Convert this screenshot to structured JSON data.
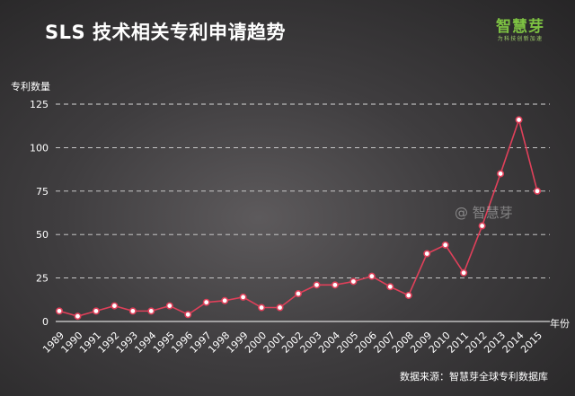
{
  "title": "SLS 技术相关专利申请趋势",
  "logo": {
    "name": "智慧芽",
    "tagline": "为科技创新加速"
  },
  "watermark": "@ 智慧芽",
  "source": "数据来源：智慧芽全球专利数据库",
  "colors": {
    "line": "#e0405a",
    "grid": "#d9d9d9",
    "point_fill": "#ffffff"
  },
  "chart_data": {
    "type": "line",
    "title": "SLS 技术相关专利申请趋势",
    "ylabel": "专利数量",
    "xlabel": "年份",
    "ylim": [
      0,
      125
    ],
    "yticks": [
      0,
      25,
      50,
      75,
      100,
      125
    ],
    "grid": "horizontal dashed",
    "x": [
      "1989",
      "1990",
      "1991",
      "1992",
      "1993",
      "1994",
      "1995",
      "1996",
      "1997",
      "1998",
      "1999",
      "2000",
      "2001",
      "2002",
      "2003",
      "2004",
      "2005",
      "2006",
      "2007",
      "2008",
      "2009",
      "2010",
      "2011",
      "2012",
      "2013",
      "2014",
      "2015"
    ],
    "series": [
      {
        "values": [
          6,
          3,
          6,
          9,
          6,
          6,
          9,
          4,
          11,
          12,
          14,
          8,
          8,
          16,
          21,
          21,
          23,
          26,
          20,
          15,
          39,
          44,
          28,
          55,
          85,
          116,
          75
        ]
      }
    ]
  }
}
